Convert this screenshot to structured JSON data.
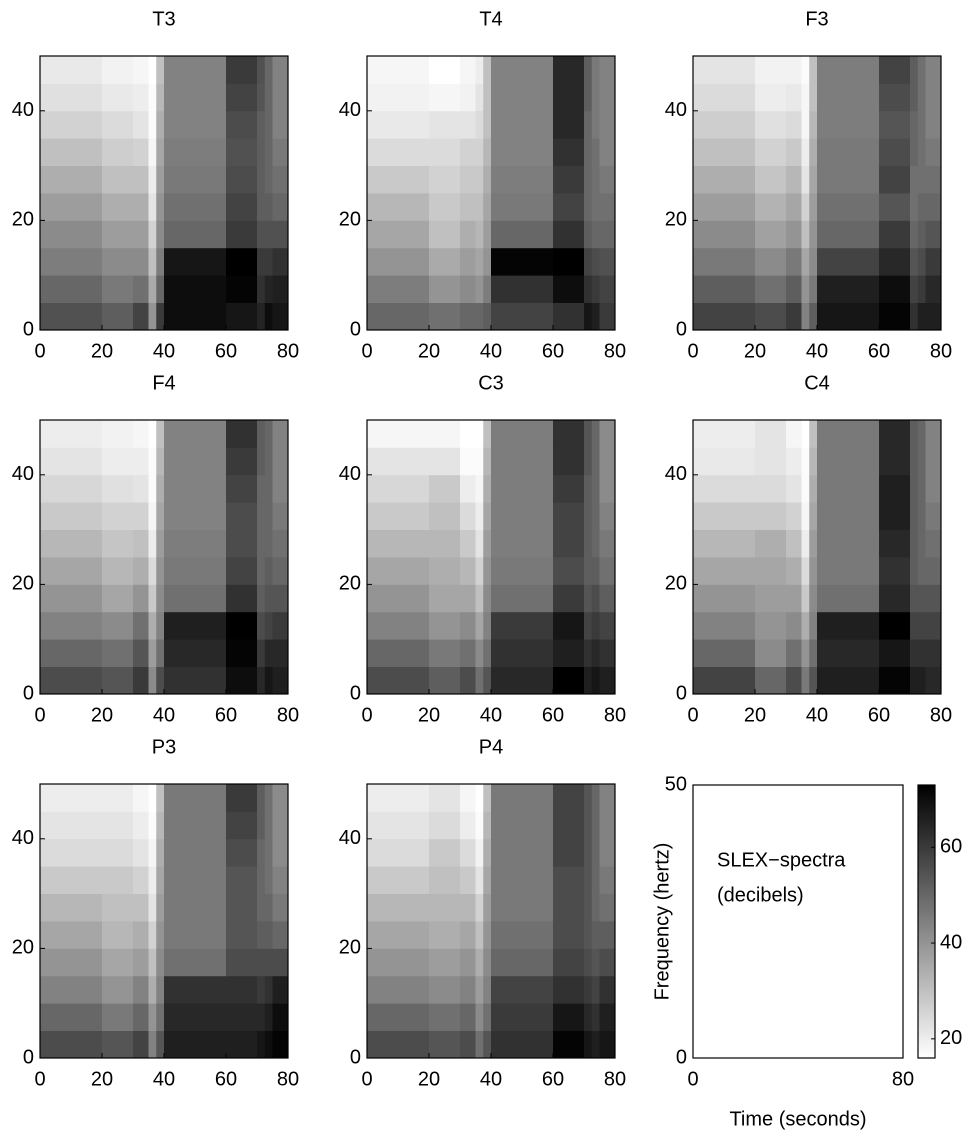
{
  "chart_data": [
    {
      "type": "heatmap",
      "title": "T3",
      "time_edges": [
        0,
        20,
        30,
        35,
        37.5,
        40,
        60,
        70,
        72.5,
        75,
        80
      ],
      "freq_edges": [
        0,
        5,
        10,
        15,
        20,
        25,
        30,
        35,
        40,
        45,
        50
      ],
      "xlim": [
        0,
        80
      ],
      "ylim": [
        0,
        50
      ],
      "xticks": [
        0,
        20,
        40,
        60,
        80
      ],
      "yticks": [
        0,
        20,
        40
      ],
      "values": [
        [
          55,
          50,
          45,
          42,
          38,
          34,
          30,
          26,
          23,
          21
        ],
        [
          52,
          46,
          42,
          38,
          34,
          30,
          27,
          24,
          21,
          19
        ],
        [
          58,
          48,
          42,
          38,
          34,
          30,
          26,
          22,
          20,
          18
        ],
        [
          40,
          35,
          30,
          26,
          22,
          20,
          18,
          17,
          17,
          16
        ],
        [
          60,
          50,
          45,
          42,
          40,
          38,
          36,
          34,
          32,
          30
        ],
        [
          70,
          70,
          68,
          50,
          48,
          46,
          45,
          44,
          44,
          44
        ],
        [
          68,
          72,
          73,
          60,
          58,
          56,
          55,
          56,
          58,
          60
        ],
        [
          65,
          62,
          60,
          55,
          52,
          52,
          52,
          52,
          54,
          55
        ],
        [
          70,
          65,
          60,
          55,
          52,
          50,
          50,
          50,
          50,
          50
        ],
        [
          68,
          66,
          62,
          55,
          50,
          48,
          46,
          44,
          44,
          44
        ]
      ]
    },
    {
      "type": "heatmap",
      "title": "T4",
      "time_edges": [
        0,
        20,
        30,
        35,
        37.5,
        40,
        60,
        70,
        72.5,
        75,
        80
      ],
      "freq_edges": [
        0,
        5,
        10,
        15,
        20,
        25,
        30,
        35,
        40,
        45,
        50
      ],
      "xlim": [
        0,
        80
      ],
      "ylim": [
        0,
        50
      ],
      "xticks": [
        0,
        20,
        40,
        60,
        80
      ],
      "yticks": [
        0,
        20,
        40
      ],
      "values": [
        [
          50,
          45,
          40,
          36,
          32,
          28,
          24,
          21,
          19,
          18
        ],
        [
          48,
          40,
          35,
          30,
          28,
          26,
          24,
          22,
          18,
          16
        ],
        [
          50,
          42,
          38,
          34,
          30,
          28,
          26,
          22,
          19,
          18
        ],
        [
          50,
          40,
          36,
          32,
          30,
          28,
          26,
          24,
          22,
          20
        ],
        [
          52,
          45,
          40,
          38,
          36,
          34,
          32,
          30,
          30,
          30
        ],
        [
          58,
          62,
          72,
          50,
          46,
          45,
          44,
          44,
          44,
          44
        ],
        [
          62,
          70,
          76,
          62,
          58,
          60,
          62,
          64,
          64,
          64
        ],
        [
          68,
          62,
          58,
          52,
          50,
          50,
          50,
          50,
          52,
          52
        ],
        [
          66,
          60,
          56,
          50,
          48,
          48,
          48,
          46,
          46,
          46
        ],
        [
          60,
          58,
          55,
          50,
          48,
          46,
          44,
          44,
          44,
          44
        ]
      ]
    },
    {
      "type": "heatmap",
      "title": "F3",
      "time_edges": [
        0,
        20,
        30,
        35,
        37.5,
        40,
        60,
        70,
        72.5,
        75,
        80
      ],
      "freq_edges": [
        0,
        5,
        10,
        15,
        20,
        25,
        30,
        35,
        40,
        45,
        50
      ],
      "xlim": [
        0,
        80
      ],
      "ylim": [
        0,
        50
      ],
      "xticks": [
        0,
        20,
        40,
        60,
        80
      ],
      "yticks": [
        0,
        20,
        40
      ],
      "values": [
        [
          58,
          52,
          46,
          42,
          38,
          34,
          30,
          27,
          24,
          22
        ],
        [
          56,
          48,
          42,
          37,
          33,
          29,
          26,
          23,
          20,
          19
        ],
        [
          60,
          52,
          46,
          40,
          36,
          32,
          28,
          24,
          21,
          19
        ],
        [
          44,
          40,
          36,
          30,
          26,
          22,
          20,
          18,
          18,
          17
        ],
        [
          52,
          46,
          42,
          40,
          38,
          36,
          34,
          32,
          30,
          30
        ],
        [
          68,
          66,
          58,
          50,
          48,
          46,
          46,
          45,
          45,
          45
        ],
        [
          72,
          70,
          64,
          60,
          54,
          58,
          56,
          54,
          56,
          58
        ],
        [
          62,
          58,
          54,
          50,
          48,
          48,
          50,
          50,
          52,
          52
        ],
        [
          66,
          60,
          56,
          52,
          50,
          48,
          48,
          48,
          48,
          48
        ],
        [
          66,
          64,
          60,
          54,
          50,
          48,
          46,
          44,
          44,
          44
        ]
      ]
    },
    {
      "type": "heatmap",
      "title": "F4",
      "time_edges": [
        0,
        20,
        30,
        35,
        37.5,
        40,
        60,
        70,
        72.5,
        75,
        80
      ],
      "freq_edges": [
        0,
        5,
        10,
        15,
        20,
        25,
        30,
        35,
        40,
        45,
        50
      ],
      "xlim": [
        0,
        80
      ],
      "ylim": [
        0,
        50
      ],
      "xticks": [
        0,
        20,
        40,
        60,
        80
      ],
      "yticks": [
        0,
        20,
        40
      ],
      "values": [
        [
          56,
          50,
          44,
          40,
          36,
          32,
          28,
          25,
          22,
          20
        ],
        [
          54,
          48,
          42,
          36,
          32,
          29,
          26,
          23,
          20,
          19
        ],
        [
          60,
          54,
          48,
          40,
          34,
          30,
          26,
          22,
          20,
          18
        ],
        [
          42,
          38,
          34,
          28,
          24,
          20,
          18,
          17,
          17,
          16
        ],
        [
          56,
          48,
          44,
          42,
          40,
          38,
          36,
          34,
          32,
          30
        ],
        [
          62,
          64,
          66,
          48,
          46,
          45,
          44,
          44,
          44,
          44
        ],
        [
          70,
          72,
          76,
          62,
          58,
          56,
          56,
          58,
          60,
          62
        ],
        [
          64,
          60,
          56,
          52,
          50,
          50,
          50,
          50,
          52,
          52
        ],
        [
          68,
          64,
          58,
          54,
          52,
          50,
          50,
          50,
          50,
          50
        ],
        [
          66,
          64,
          60,
          54,
          50,
          48,
          46,
          44,
          44,
          44
        ]
      ]
    },
    {
      "type": "heatmap",
      "title": "C3",
      "time_edges": [
        0,
        20,
        30,
        35,
        37.5,
        40,
        60,
        70,
        72.5,
        75,
        80
      ],
      "freq_edges": [
        0,
        5,
        10,
        15,
        20,
        25,
        30,
        35,
        40,
        45,
        50
      ],
      "xlim": [
        0,
        80
      ],
      "ylim": [
        0,
        50
      ],
      "xticks": [
        0,
        20,
        40,
        60,
        80
      ],
      "yticks": [
        0,
        20,
        40
      ],
      "values": [
        [
          56,
          50,
          44,
          40,
          36,
          32,
          28,
          25,
          22,
          18
        ],
        [
          52,
          46,
          40,
          36,
          34,
          32,
          30,
          28,
          22,
          18
        ],
        [
          56,
          48,
          42,
          36,
          32,
          28,
          24,
          20,
          17,
          16
        ],
        [
          48,
          42,
          36,
          30,
          26,
          22,
          20,
          18,
          17,
          16
        ],
        [
          54,
          48,
          44,
          42,
          40,
          38,
          36,
          34,
          32,
          30
        ],
        [
          64,
          62,
          60,
          48,
          46,
          45,
          45,
          45,
          45,
          45
        ],
        [
          74,
          66,
          68,
          60,
          56,
          58,
          58,
          60,
          62,
          62
        ],
        [
          66,
          62,
          58,
          54,
          52,
          52,
          52,
          52,
          54,
          54
        ],
        [
          68,
          64,
          60,
          56,
          52,
          50,
          50,
          50,
          50,
          50
        ],
        [
          66,
          62,
          58,
          52,
          48,
          46,
          44,
          42,
          42,
          42
        ]
      ]
    },
    {
      "type": "heatmap",
      "title": "C4",
      "time_edges": [
        0,
        20,
        30,
        35,
        37.5,
        40,
        60,
        70,
        72.5,
        75,
        80
      ],
      "freq_edges": [
        0,
        5,
        10,
        15,
        20,
        25,
        30,
        35,
        40,
        45,
        50
      ],
      "xlim": [
        0,
        80
      ],
      "ylim": [
        0,
        50
      ],
      "xticks": [
        0,
        20,
        40,
        60,
        80
      ],
      "yticks": [
        0,
        20,
        40
      ],
      "values": [
        [
          58,
          50,
          44,
          40,
          36,
          32,
          28,
          24,
          21,
          20
        ],
        [
          50,
          42,
          40,
          38,
          36,
          34,
          28,
          24,
          22,
          22
        ],
        [
          56,
          48,
          42,
          38,
          34,
          30,
          26,
          22,
          20,
          18
        ],
        [
          46,
          40,
          34,
          28,
          24,
          20,
          18,
          17,
          17,
          16
        ],
        [
          54,
          48,
          44,
          42,
          40,
          38,
          36,
          34,
          32,
          30
        ],
        [
          66,
          64,
          66,
          48,
          46,
          46,
          46,
          46,
          46,
          46
        ],
        [
          72,
          68,
          76,
          64,
          62,
          64,
          66,
          66,
          64,
          64
        ],
        [
          66,
          62,
          58,
          54,
          52,
          52,
          52,
          52,
          52,
          52
        ],
        [
          66,
          62,
          58,
          54,
          50,
          50,
          50,
          50,
          50,
          50
        ],
        [
          64,
          62,
          58,
          54,
          50,
          48,
          46,
          44,
          44,
          44
        ]
      ]
    },
    {
      "type": "heatmap",
      "title": "P3",
      "time_edges": [
        0,
        20,
        30,
        35,
        37.5,
        40,
        60,
        70,
        72.5,
        75,
        80
      ],
      "freq_edges": [
        0,
        5,
        10,
        15,
        20,
        25,
        30,
        35,
        40,
        45,
        50
      ],
      "xlim": [
        0,
        80
      ],
      "ylim": [
        0,
        50
      ],
      "xticks": [
        0,
        20,
        40,
        60,
        80
      ],
      "yticks": [
        0,
        20,
        40
      ],
      "values": [
        [
          56,
          50,
          44,
          40,
          36,
          32,
          28,
          24,
          22,
          20
        ],
        [
          54,
          46,
          40,
          36,
          32,
          30,
          28,
          24,
          22,
          20
        ],
        [
          58,
          50,
          44,
          38,
          34,
          30,
          26,
          22,
          20,
          18
        ],
        [
          44,
          40,
          34,
          30,
          26,
          22,
          20,
          18,
          17,
          16
        ],
        [
          54,
          48,
          44,
          42,
          40,
          38,
          36,
          34,
          32,
          30
        ],
        [
          66,
          64,
          62,
          48,
          46,
          46,
          46,
          46,
          46,
          46
        ],
        [
          66,
          64,
          62,
          56,
          54,
          54,
          54,
          56,
          58,
          60
        ],
        [
          68,
          64,
          60,
          56,
          52,
          50,
          50,
          50,
          52,
          52
        ],
        [
          70,
          66,
          62,
          56,
          52,
          50,
          48,
          48,
          48,
          48
        ],
        [
          72,
          70,
          66,
          56,
          50,
          46,
          44,
          42,
          42,
          42
        ]
      ]
    },
    {
      "type": "heatmap",
      "title": "P4",
      "time_edges": [
        0,
        20,
        30,
        35,
        37.5,
        40,
        60,
        70,
        72.5,
        75,
        80
      ],
      "freq_edges": [
        0,
        5,
        10,
        15,
        20,
        25,
        30,
        35,
        40,
        45,
        50
      ],
      "xlim": [
        0,
        80
      ],
      "ylim": [
        0,
        50
      ],
      "xticks": [
        0,
        20,
        40,
        60,
        80
      ],
      "yticks": [
        0,
        20,
        40
      ],
      "values": [
        [
          56,
          50,
          44,
          40,
          36,
          32,
          28,
          24,
          22,
          20
        ],
        [
          54,
          48,
          42,
          38,
          34,
          32,
          30,
          28,
          24,
          22
        ],
        [
          56,
          50,
          44,
          40,
          36,
          32,
          28,
          24,
          20,
          18
        ],
        [
          48,
          42,
          38,
          34,
          30,
          26,
          22,
          19,
          17,
          16
        ],
        [
          54,
          48,
          44,
          42,
          40,
          38,
          36,
          34,
          32,
          30
        ],
        [
          62,
          60,
          58,
          50,
          48,
          46,
          46,
          46,
          46,
          46
        ],
        [
          72,
          68,
          62,
          58,
          56,
          56,
          56,
          58,
          58,
          58
        ],
        [
          68,
          64,
          60,
          56,
          54,
          54,
          54,
          54,
          54,
          54
        ],
        [
          66,
          62,
          58,
          54,
          52,
          50,
          50,
          50,
          50,
          50
        ],
        [
          68,
          66,
          62,
          56,
          52,
          48,
          46,
          44,
          44,
          44
        ]
      ]
    },
    {
      "type": "key",
      "xlim": [
        0,
        80
      ],
      "ylim": [
        0,
        50
      ],
      "xticks": [
        0,
        80
      ],
      "yticks": [
        0,
        50
      ],
      "xlabel": "Time (seconds)",
      "ylabel": "Frequency (hertz)",
      "text": [
        "SLEX−spectra",
        "(decibels)"
      ],
      "clim": [
        16,
        73
      ],
      "cticks": [
        20,
        40,
        60
      ]
    }
  ]
}
